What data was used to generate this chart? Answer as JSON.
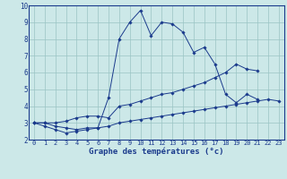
{
  "xlabel": "Graphe des températures (°c)",
  "x": [
    0,
    1,
    2,
    3,
    4,
    5,
    6,
    7,
    8,
    9,
    10,
    11,
    12,
    13,
    14,
    15,
    16,
    17,
    18,
    19,
    20,
    21,
    22,
    23
  ],
  "line1": [
    3.0,
    2.8,
    2.6,
    2.4,
    2.5,
    2.6,
    2.7,
    4.5,
    8.0,
    9.0,
    9.7,
    8.2,
    9.0,
    8.9,
    8.4,
    7.2,
    7.5,
    6.5,
    4.7,
    4.2,
    4.7,
    4.4,
    null,
    null
  ],
  "line2": [
    3.0,
    3.0,
    3.0,
    3.1,
    3.3,
    3.4,
    3.4,
    3.3,
    4.0,
    4.1,
    4.3,
    4.5,
    4.7,
    4.8,
    5.0,
    5.2,
    5.4,
    5.7,
    6.0,
    6.5,
    6.2,
    6.1,
    null,
    null
  ],
  "line3": [
    3.0,
    3.0,
    2.8,
    2.7,
    2.6,
    2.7,
    2.7,
    2.8,
    3.0,
    3.1,
    3.2,
    3.3,
    3.4,
    3.5,
    3.6,
    3.7,
    3.8,
    3.9,
    4.0,
    4.1,
    4.2,
    4.3,
    4.4,
    4.3
  ],
  "line_color": "#1a3a8c",
  "bg_color": "#cce8e8",
  "grid_color": "#9ac4c4",
  "ylim": [
    2,
    10
  ],
  "xlim": [
    -0.5,
    23.5
  ],
  "yticks": [
    2,
    3,
    4,
    5,
    6,
    7,
    8,
    9,
    10
  ],
  "xlabel_fontsize": 6.5,
  "tick_fontsize": 5.0,
  "linewidth": 0.7,
  "markersize": 1.8
}
